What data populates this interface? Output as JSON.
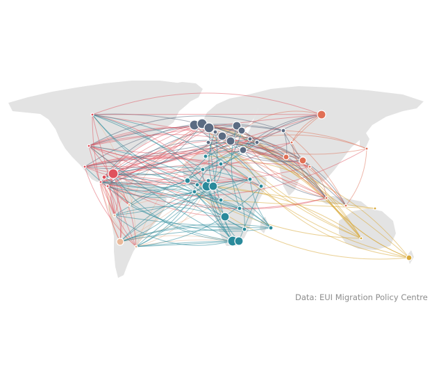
{
  "source": "Data: EUI Migration Policy Centre",
  "colors": {
    "land": "#e3e3e3",
    "north_america": "#e0525d",
    "latin_america": "#eab99a",
    "europe": "#5b6b82",
    "africa": "#2a8a9b",
    "asia": "#e06f55",
    "oceania": "#d8a93a"
  }
}
